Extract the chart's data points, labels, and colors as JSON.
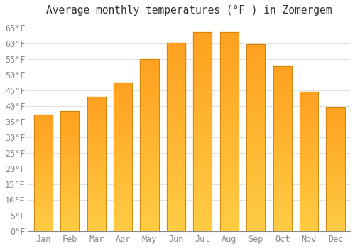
{
  "title": "Average monthly temperatures (°F ) in Zomergem",
  "months": [
    "Jan",
    "Feb",
    "Mar",
    "Apr",
    "May",
    "Jun",
    "Jul",
    "Aug",
    "Sep",
    "Oct",
    "Nov",
    "Dec"
  ],
  "values": [
    37.2,
    38.3,
    43.0,
    47.5,
    55.0,
    60.3,
    63.5,
    63.7,
    59.7,
    52.7,
    44.6,
    39.6
  ],
  "bar_color_bottom": "#FFCC44",
  "bar_color_top": "#FFA020",
  "bar_edge_color": "#C8830A",
  "background_color": "#FFFFFF",
  "grid_color": "#E0E0E0",
  "ylim": [
    0,
    67
  ],
  "ytick_step": 5,
  "title_fontsize": 10.5,
  "tick_fontsize": 8.5,
  "bar_width": 0.7,
  "figsize": [
    5.0,
    3.5
  ],
  "dpi": 100
}
